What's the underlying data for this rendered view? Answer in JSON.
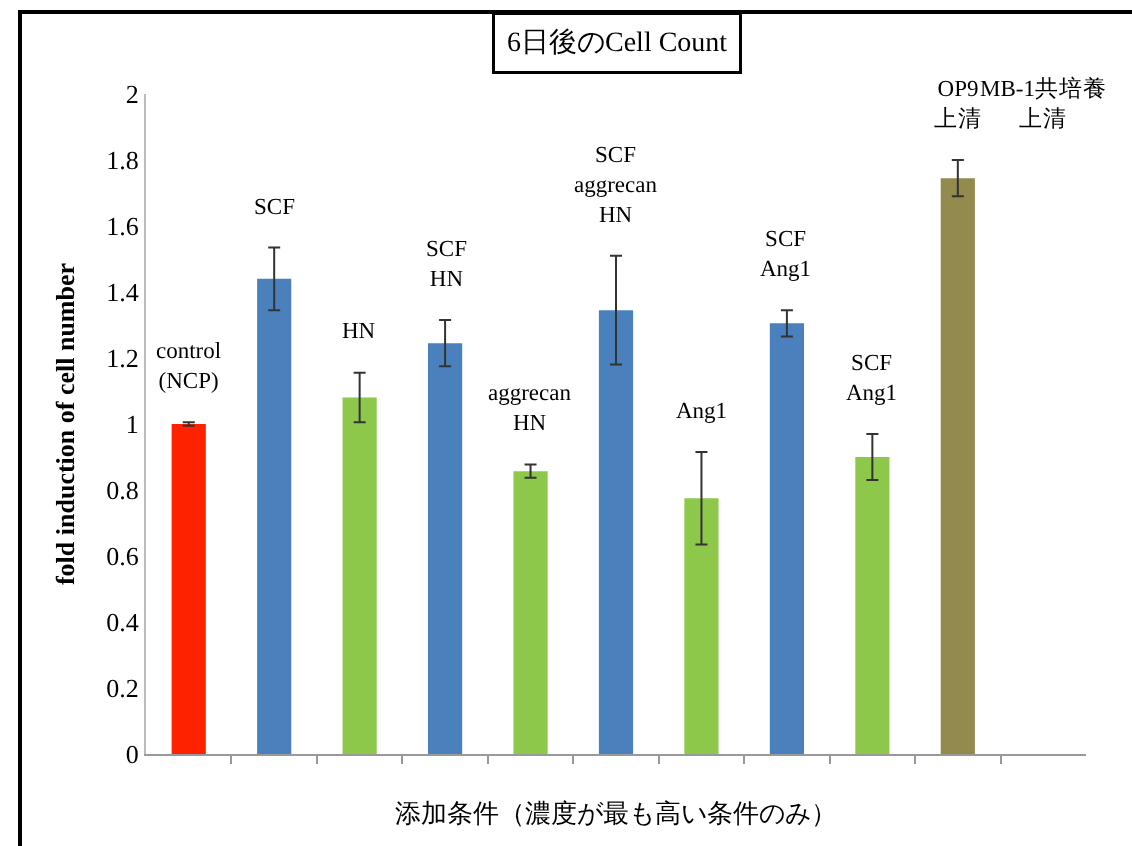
{
  "chart_data": {
    "type": "bar",
    "title": "6日後のCell Count",
    "xlabel": "添加条件（濃度が最も高い条件のみ）",
    "ylabel": "fold induction of cell number",
    "categories": [
      "control\n(NCP)",
      "SCF",
      "HN",
      "SCF\nHN",
      "aggrecan\nHN",
      "SCF\naggrecan\nHN",
      "Ang1",
      "SCF\nAng1",
      "SCF\nAng1",
      "OP9\n上清",
      "MB-1共培養上清"
    ],
    "values": [
      1.0,
      1.44,
      1.08,
      1.245,
      0.857,
      1.345,
      0.775,
      1.305,
      0.9,
      1.745,
      null
    ],
    "errors": [
      0.005,
      0.095,
      0.075,
      0.07,
      0.02,
      0.165,
      0.14,
      0.04,
      0.07,
      0.055,
      null
    ],
    "colors": [
      "#ff2200",
      "#4a81bd",
      "#8dc84b",
      "#4a81bd",
      "#8dc84b",
      "#4a81bd",
      "#8dc84b",
      "#4a81bd",
      "#8dc84b",
      "#938a4e",
      "#938a4e"
    ],
    "ylim": [
      0,
      2
    ],
    "yticks": [
      0,
      0.2,
      0.4,
      0.6,
      0.8,
      1,
      1.2,
      1.4,
      1.6,
      1.8,
      2
    ],
    "grid": false,
    "legend": false
  }
}
